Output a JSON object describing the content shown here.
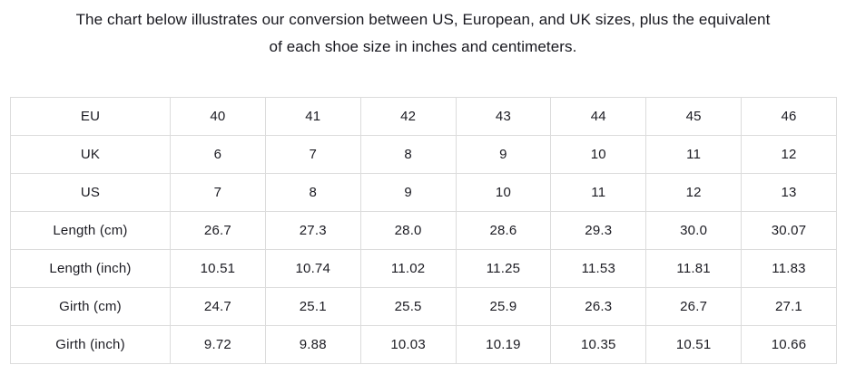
{
  "header": {
    "title_line1": "The chart below illustrates our conversion between US, European, and UK sizes, plus the equivalent",
    "title_line2": "of each shoe size in inches and centimeters."
  },
  "colors": {
    "background": "#ffffff",
    "text": "#18181f",
    "table_border": "#dcdcdc"
  },
  "chart_data": {
    "type": "table",
    "title": "The chart below illustrates our conversion between US, European, and UK sizes, plus the equivalent of each shoe size in inches and centimeters.",
    "rows": [
      {
        "label": "EU",
        "values": [
          "40",
          "41",
          "42",
          "43",
          "44",
          "45",
          "46"
        ]
      },
      {
        "label": "UK",
        "values": [
          "6",
          "7",
          "8",
          "9",
          "10",
          "11",
          "12"
        ]
      },
      {
        "label": "US",
        "values": [
          "7",
          "8",
          "9",
          "10",
          "11",
          "12",
          "13"
        ]
      },
      {
        "label": "Length (cm)",
        "values": [
          "26.7",
          "27.3",
          "28.0",
          "28.6",
          "29.3",
          "30.0",
          "30.07"
        ]
      },
      {
        "label": "Length (inch)",
        "values": [
          "10.51",
          "10.74",
          "11.02",
          "11.25",
          "11.53",
          "11.81",
          "11.83"
        ]
      },
      {
        "label": "Girth (cm)",
        "values": [
          "24.7",
          "25.1",
          "25.5",
          "25.9",
          "26.3",
          "26.7",
          "27.1"
        ]
      },
      {
        "label": "Girth (inch)",
        "values": [
          "9.72",
          "9.88",
          "10.03",
          "10.19",
          "10.35",
          "10.51",
          "10.66"
        ]
      }
    ]
  }
}
